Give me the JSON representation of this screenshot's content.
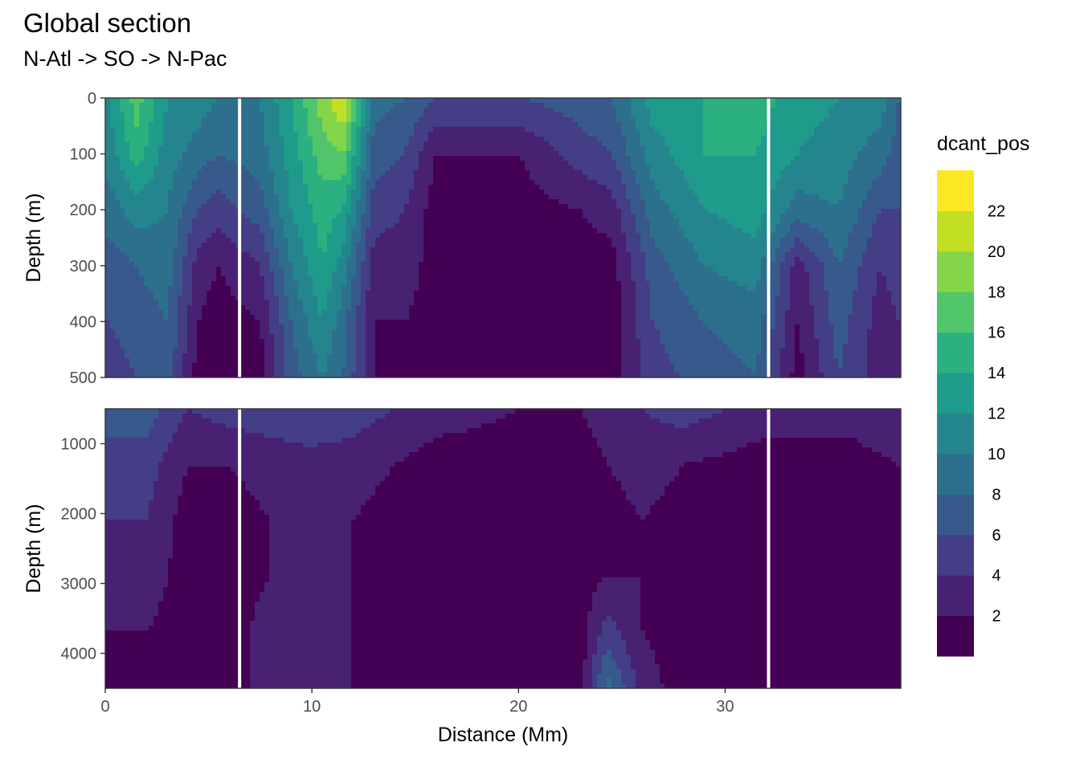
{
  "title": "Global section",
  "subtitle": "N-Atl -> SO -> N-Pac",
  "chart_data": {
    "type": "heatmap",
    "xlabel": "Distance (Mm)",
    "ylabel": "Depth (m)",
    "xlim": [
      0,
      38.5
    ],
    "x_ticks": [
      0,
      10,
      20,
      30
    ],
    "section_lines_x": [
      6.5,
      32.1
    ],
    "panels": [
      {
        "name": "upper",
        "ylim": [
          0,
          500
        ],
        "y_ticks": [
          0,
          100,
          200,
          300,
          400,
          500
        ],
        "profiles": [
          {
            "x": 0.2,
            "values": [
              12,
              11,
              9,
              7,
              6,
              5
            ]
          },
          {
            "x": 1.5,
            "values": [
              17,
              15,
              11,
              8,
              7,
              6
            ]
          },
          {
            "x": 3.0,
            "values": [
              12,
              11,
              10,
              9,
              8,
              7
            ]
          },
          {
            "x": 4.5,
            "values": [
              11,
              9,
              6,
              3,
              2,
              1
            ]
          },
          {
            "x": 5.5,
            "values": [
              10,
              8,
              5,
              2,
              1,
              1
            ]
          },
          {
            "x": 7.5,
            "values": [
              10,
              9,
              7,
              4,
              2,
              1
            ]
          },
          {
            "x": 9.0,
            "values": [
              14,
              13,
              12,
              10,
              8,
              7
            ]
          },
          {
            "x": 10.5,
            "values": [
              19,
              17,
              15,
              14,
              12,
              10
            ]
          },
          {
            "x": 11.5,
            "values": [
              22,
              18,
              14,
              11,
              9,
              8
            ]
          },
          {
            "x": 13.0,
            "values": [
              9,
              7,
              5,
              3,
              2,
              2
            ]
          },
          {
            "x": 14.5,
            "values": [
              8,
              6,
              4,
              3,
              2,
              1
            ]
          },
          {
            "x": 16.0,
            "values": [
              6,
              2,
              1,
              1,
              1,
              1
            ]
          },
          {
            "x": 20.0,
            "values": [
              6,
              2,
              1,
              1,
              1,
              1
            ]
          },
          {
            "x": 23.0,
            "values": [
              7,
              5,
              2,
              1,
              1,
              1
            ]
          },
          {
            "x": 24.5,
            "values": [
              8,
              6,
              3,
              1,
              1,
              1
            ]
          },
          {
            "x": 26.5,
            "values": [
              13,
              11,
              9,
              7,
              6,
              5
            ]
          },
          {
            "x": 29.0,
            "values": [
              14,
              14,
              12,
              10,
              8,
              7
            ]
          },
          {
            "x": 31.5,
            "values": [
              15,
              14,
              13,
              11,
              9,
              8
            ]
          },
          {
            "x": 33.5,
            "values": [
              13,
              12,
              9,
              3,
              2,
              1
            ]
          },
          {
            "x": 35.5,
            "values": [
              12,
              11,
              10,
              8,
              7,
              6
            ]
          },
          {
            "x": 37.5,
            "values": [
              11,
              9,
              6,
              4,
              3,
              3
            ]
          },
          {
            "x": 38.4,
            "values": [
              8,
              7,
              6,
              5,
              4,
              4
            ]
          }
        ]
      },
      {
        "name": "lower",
        "ylim": [
          500,
          4500
        ],
        "y_ticks": [
          1000,
          2000,
          3000,
          4000
        ],
        "profiles": [
          {
            "x": 0.2,
            "values": [
              7,
              5,
              4,
              3,
              2,
              1
            ]
          },
          {
            "x": 2.0,
            "values": [
              7,
              5,
              4,
              3,
              2,
              1
            ]
          },
          {
            "x": 4.0,
            "values": [
              4,
              2,
              1,
              1,
              1,
              1
            ]
          },
          {
            "x": 6.0,
            "values": [
              5,
              2,
              1,
              1,
              1,
              1
            ]
          },
          {
            "x": 8.0,
            "values": [
              5,
              3,
              2,
              2,
              3,
              3
            ]
          },
          {
            "x": 10.0,
            "values": [
              6,
              3,
              3,
              2,
              3,
              3
            ]
          },
          {
            "x": 12.0,
            "values": [
              5,
              3,
              2,
              2,
              2,
              2
            ]
          },
          {
            "x": 14.0,
            "values": [
              4,
              2,
              1,
              1,
              1,
              1
            ]
          },
          {
            "x": 16.0,
            "values": [
              3,
              1,
              1,
              1,
              1,
              1
            ]
          },
          {
            "x": 20.0,
            "values": [
              2,
              1,
              1,
              1,
              1,
              1
            ]
          },
          {
            "x": 23.0,
            "values": [
              2,
              1,
              1,
              1,
              1,
              1
            ]
          },
          {
            "x": 24.3,
            "values": [
              3,
              2,
              1,
              2,
              5,
              9
            ]
          },
          {
            "x": 26.0,
            "values": [
              4,
              3,
              2,
              2,
              2,
              3
            ]
          },
          {
            "x": 28.0,
            "values": [
              5,
              2,
              1,
              1,
              1,
              1
            ]
          },
          {
            "x": 32.0,
            "values": [
              3,
              1,
              1,
              1,
              1,
              1
            ]
          },
          {
            "x": 36.0,
            "values": [
              3,
              1,
              1,
              1,
              1,
              1
            ]
          },
          {
            "x": 38.4,
            "values": [
              4,
              2,
              1,
              1,
              1,
              1
            ]
          }
        ]
      }
    ],
    "legend": {
      "title": "dcant_pos",
      "placement": "right",
      "ticks": [
        2,
        4,
        6,
        8,
        10,
        12,
        14,
        16,
        18,
        20,
        22
      ],
      "range": [
        0,
        24
      ],
      "colors": [
        "#440154",
        "#482173",
        "#433E85",
        "#38598C",
        "#2D708E",
        "#25858E",
        "#1E9B8A",
        "#2BB07F",
        "#51C56A",
        "#85D54A",
        "#C2DF23",
        "#FDE725"
      ]
    },
    "grid": true
  }
}
